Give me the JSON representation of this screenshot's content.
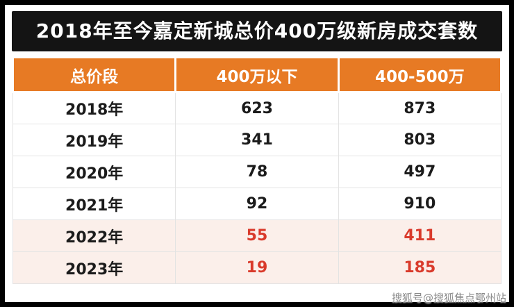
{
  "title": "2018年至今嘉定新城总价400万级新房成交套数",
  "headers": [
    "总价段",
    "400万以下",
    "400-500万"
  ],
  "rows": [
    [
      "2018年",
      "623",
      "873"
    ],
    [
      "2019年",
      "341",
      "803"
    ],
    [
      "2020年",
      "78",
      "497"
    ],
    [
      "2021年",
      "92",
      "910"
    ],
    [
      "2022年",
      "55",
      "411"
    ],
    [
      "2023年",
      "19",
      "185"
    ]
  ],
  "watermark": "搜狐号@搜狐焦点鄂州站",
  "colors": {
    "header_bg": "#E77A24",
    "title_bg": "#141414",
    "highlight_row_bg": "#FBEFEA",
    "highlight_value_text": "#D93A2B"
  },
  "chart_data": {
    "type": "table",
    "title": "2018年至今嘉定新城总价400万级新房成交套数",
    "columns": [
      "总价段",
      "400万以下",
      "400-500万"
    ],
    "rows": [
      [
        "2018年",
        623,
        873
      ],
      [
        "2019年",
        341,
        803
      ],
      [
        "2020年",
        78,
        497
      ],
      [
        "2021年",
        92,
        910
      ],
      [
        "2022年",
        55,
        411
      ],
      [
        "2023年",
        19,
        185
      ]
    ],
    "notes": "Rows for 2022年 and 2023年 are highlighted with light pink background and red values"
  }
}
